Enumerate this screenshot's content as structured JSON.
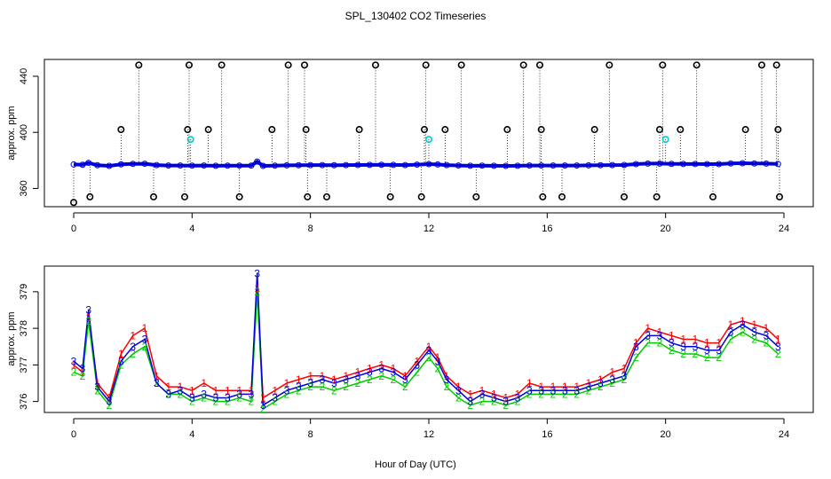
{
  "title": "SPL_130402  CO2 Timeseries",
  "xlabel": "Hour of Day (UTC)",
  "chart_data": [
    {
      "type": "scatter",
      "ylabel": "approx. ppm",
      "xlim": [
        0,
        24
      ],
      "ylim": [
        347,
        452
      ],
      "xticks": [
        0,
        4,
        8,
        12,
        16,
        20,
        24
      ],
      "yticks": [
        360,
        400,
        440
      ],
      "baseline": 377,
      "base_series": {
        "x": [
          0.0,
          0.3,
          0.5,
          0.8,
          1.2,
          1.6,
          2.0,
          2.4,
          2.8,
          3.2,
          3.6,
          4.0,
          4.4,
          4.8,
          5.2,
          5.6,
          6.0,
          6.2,
          6.4,
          6.8,
          7.2,
          7.6,
          8.0,
          8.4,
          8.8,
          9.2,
          9.6,
          10.0,
          10.4,
          10.8,
          11.2,
          11.6,
          12.0,
          12.3,
          12.6,
          13.0,
          13.4,
          13.8,
          14.2,
          14.6,
          15.0,
          15.4,
          15.8,
          16.2,
          16.6,
          17.0,
          17.4,
          17.8,
          18.2,
          18.6,
          19.0,
          19.4,
          19.8,
          20.2,
          20.6,
          21.0,
          21.4,
          21.8,
          22.2,
          22.6,
          23.0,
          23.4,
          23.8
        ],
        "y": [
          377.1,
          376.9,
          378.4,
          376.5,
          376.0,
          377.2,
          377.6,
          377.7,
          376.6,
          376.3,
          376.3,
          376.2,
          376.3,
          376.1,
          376.2,
          376.2,
          376.2,
          379.4,
          376.0,
          376.2,
          376.4,
          376.5,
          376.6,
          376.6,
          376.5,
          376.6,
          376.7,
          376.8,
          376.9,
          376.8,
          376.6,
          377.0,
          377.4,
          377.1,
          376.6,
          376.3,
          376.1,
          376.2,
          376.1,
          376.0,
          376.1,
          376.3,
          376.3,
          376.3,
          376.3,
          376.3,
          376.4,
          376.5,
          376.6,
          376.7,
          377.4,
          377.8,
          377.8,
          377.6,
          377.5,
          377.5,
          377.4,
          377.4,
          377.9,
          378.1,
          377.9,
          377.8,
          377.5
        ]
      },
      "spikes": [
        {
          "x": 0.0,
          "y": 350
        },
        {
          "x": 0.55,
          "y": 354
        },
        {
          "x": 1.6,
          "y": 402
        },
        {
          "x": 2.2,
          "y": 448
        },
        {
          "x": 2.7,
          "y": 354
        },
        {
          "x": 3.75,
          "y": 354
        },
        {
          "x": 3.85,
          "y": 402
        },
        {
          "x": 3.9,
          "y": 448
        },
        {
          "x": 3.95,
          "y": 395,
          "color": "#00cccc"
        },
        {
          "x": 4.55,
          "y": 402
        },
        {
          "x": 5.0,
          "y": 448
        },
        {
          "x": 5.6,
          "y": 354
        },
        {
          "x": 6.7,
          "y": 402
        },
        {
          "x": 7.25,
          "y": 448
        },
        {
          "x": 7.8,
          "y": 448
        },
        {
          "x": 7.85,
          "y": 402
        },
        {
          "x": 7.9,
          "y": 354
        },
        {
          "x": 8.55,
          "y": 354
        },
        {
          "x": 9.65,
          "y": 402
        },
        {
          "x": 10.2,
          "y": 448
        },
        {
          "x": 10.7,
          "y": 354
        },
        {
          "x": 11.75,
          "y": 354
        },
        {
          "x": 11.85,
          "y": 402
        },
        {
          "x": 11.9,
          "y": 448
        },
        {
          "x": 12.0,
          "y": 395,
          "color": "#00cccc"
        },
        {
          "x": 12.55,
          "y": 402
        },
        {
          "x": 13.1,
          "y": 448
        },
        {
          "x": 13.6,
          "y": 354
        },
        {
          "x": 14.65,
          "y": 402
        },
        {
          "x": 15.2,
          "y": 448
        },
        {
          "x": 15.75,
          "y": 448
        },
        {
          "x": 15.8,
          "y": 402
        },
        {
          "x": 15.85,
          "y": 354
        },
        {
          "x": 16.5,
          "y": 354
        },
        {
          "x": 17.6,
          "y": 402
        },
        {
          "x": 18.1,
          "y": 448
        },
        {
          "x": 18.6,
          "y": 354
        },
        {
          "x": 19.7,
          "y": 354
        },
        {
          "x": 19.8,
          "y": 402
        },
        {
          "x": 19.9,
          "y": 448
        },
        {
          "x": 20.0,
          "y": 395,
          "color": "#00cccc"
        },
        {
          "x": 20.5,
          "y": 402
        },
        {
          "x": 21.05,
          "y": 448
        },
        {
          "x": 21.6,
          "y": 354
        },
        {
          "x": 22.7,
          "y": 402
        },
        {
          "x": 23.25,
          "y": 448
        },
        {
          "x": 23.75,
          "y": 448
        },
        {
          "x": 23.8,
          "y": 402
        },
        {
          "x": 23.85,
          "y": 354
        }
      ]
    },
    {
      "type": "line",
      "ylabel": "approx. ppm",
      "xlim": [
        0,
        24
      ],
      "ylim": [
        375.7,
        379.7
      ],
      "xticks": [
        0,
        4,
        8,
        12,
        16,
        20,
        24
      ],
      "yticks": [
        376,
        377,
        378,
        379
      ],
      "series": [
        {
          "name": "1",
          "color": "#ff0000",
          "x": [
            0.0,
            0.3,
            0.5,
            0.8,
            1.2,
            1.6,
            2.0,
            2.4,
            2.8,
            3.2,
            3.6,
            4.0,
            4.4,
            4.8,
            5.2,
            5.6,
            6.0,
            6.2,
            6.4,
            6.8,
            7.2,
            7.6,
            8.0,
            8.4,
            8.8,
            9.2,
            9.6,
            10.0,
            10.4,
            10.8,
            11.2,
            11.6,
            12.0,
            12.3,
            12.6,
            13.0,
            13.4,
            13.8,
            14.2,
            14.6,
            15.0,
            15.4,
            15.8,
            16.2,
            16.6,
            17.0,
            17.4,
            17.8,
            18.2,
            18.6,
            19.0,
            19.4,
            19.8,
            20.2,
            20.6,
            21.0,
            21.4,
            21.8,
            22.2,
            22.6,
            23.0,
            23.4,
            23.8
          ],
          "values": [
            377.0,
            376.8,
            378.3,
            376.5,
            376.1,
            377.3,
            377.8,
            378.0,
            376.7,
            376.4,
            376.4,
            376.3,
            376.5,
            376.3,
            376.3,
            376.3,
            376.3,
            379.1,
            376.1,
            376.3,
            376.5,
            376.6,
            376.7,
            376.7,
            376.6,
            376.7,
            376.8,
            376.9,
            377.0,
            376.9,
            376.7,
            377.1,
            377.5,
            377.2,
            376.7,
            376.4,
            376.2,
            376.3,
            376.2,
            376.1,
            376.2,
            376.5,
            376.4,
            376.4,
            376.4,
            376.4,
            376.5,
            376.6,
            376.8,
            376.9,
            377.6,
            378.0,
            377.9,
            377.8,
            377.7,
            377.7,
            377.6,
            377.6,
            378.1,
            378.2,
            378.1,
            378.0,
            377.7
          ]
        },
        {
          "name": "2",
          "color": "#00cc00",
          "x": [
            0.0,
            0.3,
            0.5,
            0.8,
            1.2,
            1.6,
            2.0,
            2.4,
            2.8,
            3.2,
            3.6,
            4.0,
            4.4,
            4.8,
            5.2,
            5.6,
            6.0,
            6.2,
            6.4,
            6.8,
            7.2,
            7.6,
            8.0,
            8.4,
            8.8,
            9.2,
            9.6,
            10.0,
            10.4,
            10.8,
            11.2,
            11.6,
            12.0,
            12.3,
            12.6,
            13.0,
            13.4,
            13.8,
            14.2,
            14.6,
            15.0,
            15.4,
            15.8,
            16.2,
            16.6,
            17.0,
            17.4,
            17.8,
            18.2,
            18.6,
            19.0,
            19.4,
            19.8,
            20.2,
            20.6,
            21.0,
            21.4,
            21.8,
            22.2,
            22.6,
            23.0,
            23.4,
            23.8
          ],
          "values": [
            376.8,
            376.7,
            378.2,
            376.3,
            375.9,
            377.0,
            377.3,
            377.5,
            376.5,
            376.2,
            376.2,
            376.0,
            376.1,
            376.0,
            376.0,
            376.1,
            376.0,
            379.0,
            375.8,
            376.0,
            376.2,
            376.3,
            376.4,
            376.4,
            376.3,
            376.4,
            376.5,
            376.6,
            376.7,
            376.6,
            376.4,
            376.8,
            377.2,
            376.9,
            376.4,
            376.1,
            375.9,
            376.0,
            376.0,
            375.9,
            376.0,
            376.2,
            376.2,
            376.2,
            376.2,
            376.2,
            376.3,
            376.4,
            376.5,
            376.6,
            377.2,
            377.6,
            377.6,
            377.4,
            377.3,
            377.3,
            377.2,
            377.2,
            377.7,
            377.9,
            377.7,
            377.6,
            377.3
          ]
        },
        {
          "name": "3",
          "color": "#0000dd",
          "x": [
            0.0,
            0.3,
            0.5,
            0.8,
            1.2,
            1.6,
            2.0,
            2.4,
            2.8,
            3.2,
            3.6,
            4.0,
            4.4,
            4.8,
            5.2,
            5.6,
            6.0,
            6.2,
            6.4,
            6.8,
            7.2,
            7.6,
            8.0,
            8.4,
            8.8,
            9.2,
            9.6,
            10.0,
            10.4,
            10.8,
            11.2,
            11.6,
            12.0,
            12.3,
            12.6,
            13.0,
            13.4,
            13.8,
            14.2,
            14.6,
            15.0,
            15.4,
            15.8,
            16.2,
            16.6,
            17.0,
            17.4,
            17.8,
            18.2,
            18.6,
            19.0,
            19.4,
            19.8,
            20.2,
            20.6,
            21.0,
            21.4,
            21.8,
            22.2,
            22.6,
            23.0,
            23.4,
            23.8
          ],
          "values": [
            377.1,
            376.9,
            378.5,
            376.4,
            376.0,
            377.1,
            377.5,
            377.7,
            376.5,
            376.2,
            376.3,
            376.1,
            376.2,
            376.1,
            376.1,
            376.2,
            376.2,
            379.5,
            375.9,
            376.1,
            376.3,
            376.4,
            376.5,
            376.6,
            376.5,
            376.6,
            376.7,
            376.8,
            376.9,
            376.8,
            376.6,
            377.0,
            377.4,
            377.1,
            376.6,
            376.3,
            376.0,
            376.2,
            376.1,
            376.0,
            376.1,
            376.3,
            376.3,
            376.3,
            376.3,
            376.3,
            376.4,
            376.5,
            376.6,
            376.7,
            377.5,
            377.8,
            377.8,
            377.6,
            377.5,
            377.5,
            377.4,
            377.4,
            377.9,
            378.1,
            377.9,
            377.8,
            377.5
          ]
        }
      ]
    }
  ],
  "colors": {
    "base": "#0000dd",
    "spike": "#000000",
    "alt_marker": "#00cccc",
    "s1": "#ff0000",
    "s2": "#00cc00",
    "s3": "#0000dd"
  }
}
